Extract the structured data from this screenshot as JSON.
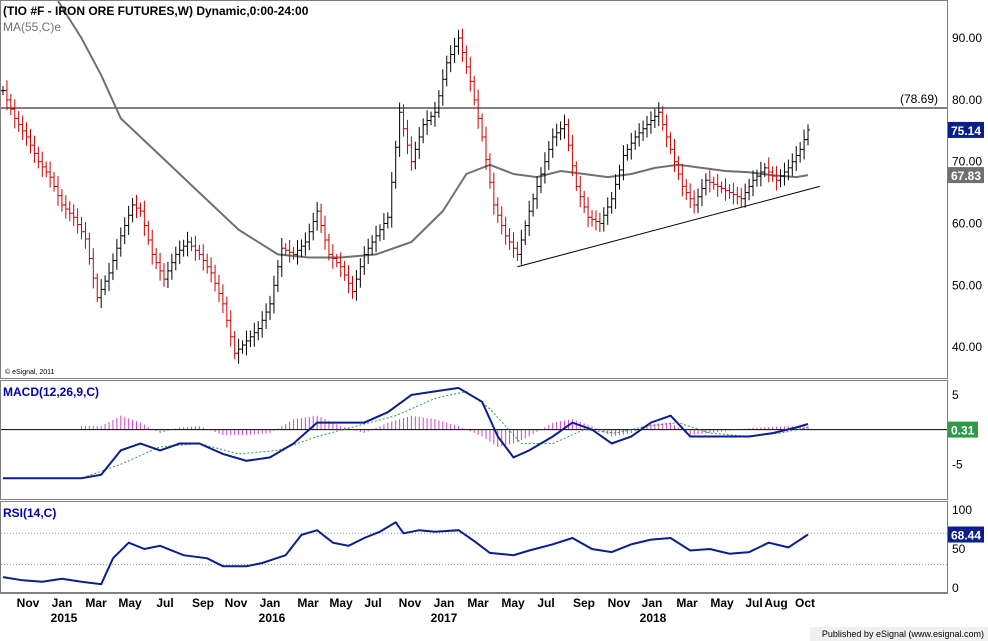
{
  "header": {
    "title": "(TIO #F - IRON ORE FUTURES,W) Dynamic,0:00-24:00",
    "ma_label": "MA(55,C)e",
    "copyright": "© eSignal, 2011"
  },
  "footer": {
    "published": "Published by eSignal (www.esignal.com)"
  },
  "colors": {
    "background": "#ffffff",
    "up_bar": "#000000",
    "down_bar": "#cc0000",
    "ma_line": "#707070",
    "macd_line": "#0a1e8c",
    "signal_line": "#2e9a4a",
    "histogram": "#cc44cc",
    "rsi_line": "#0a1e8c",
    "label_accent": "#0000aa"
  },
  "chart_data": [
    {
      "type": "line",
      "title": "(TIO #F - IRON ORE FUTURES,W) Dynamic,0:00-24:00",
      "panel": "price",
      "x_categories": [
        "Nov",
        "Jan",
        "Mar",
        "May",
        "Jul",
        "Sep",
        "Nov",
        "Jan",
        "Mar",
        "May",
        "Jul",
        "Nov",
        "Jan",
        "Mar",
        "May",
        "Jul",
        "Sep",
        "Nov",
        "Jan",
        "Mar",
        "May",
        "Jul",
        "Aug",
        "Oct"
      ],
      "x_year_labels": [
        "2015",
        "2016",
        "2017",
        "2018"
      ],
      "y_ticks": [
        "90.00",
        "80.00",
        "70.00",
        "60.00",
        "50.00",
        "40.00"
      ],
      "ylim": [
        35,
        96
      ],
      "price_series": [
        {
          "x": 0,
          "y": 81.5
        },
        {
          "x": 3,
          "y": 77
        },
        {
          "x": 6,
          "y": 74
        },
        {
          "x": 9,
          "y": 70
        },
        {
          "x": 12,
          "y": 67.5
        },
        {
          "x": 15,
          "y": 63
        },
        {
          "x": 18,
          "y": 61
        },
        {
          "x": 21,
          "y": 57.5
        },
        {
          "x": 24,
          "y": 48
        },
        {
          "x": 27,
          "y": 52
        },
        {
          "x": 30,
          "y": 58
        },
        {
          "x": 33,
          "y": 63
        },
        {
          "x": 35,
          "y": 62
        },
        {
          "x": 38,
          "y": 55
        },
        {
          "x": 41,
          "y": 51
        },
        {
          "x": 44,
          "y": 55
        },
        {
          "x": 47,
          "y": 57
        },
        {
          "x": 50,
          "y": 55
        },
        {
          "x": 53,
          "y": 52
        },
        {
          "x": 56,
          "y": 47
        },
        {
          "x": 59,
          "y": 39
        },
        {
          "x": 62,
          "y": 41
        },
        {
          "x": 65,
          "y": 43
        },
        {
          "x": 68,
          "y": 47
        },
        {
          "x": 71,
          "y": 56
        },
        {
          "x": 74,
          "y": 55
        },
        {
          "x": 77,
          "y": 57
        },
        {
          "x": 80,
          "y": 62
        },
        {
          "x": 83,
          "y": 55
        },
        {
          "x": 86,
          "y": 53
        },
        {
          "x": 89,
          "y": 49
        },
        {
          "x": 92,
          "y": 55
        },
        {
          "x": 95,
          "y": 58
        },
        {
          "x": 98,
          "y": 61
        },
        {
          "x": 101,
          "y": 78
        },
        {
          "x": 104,
          "y": 70
        },
        {
          "x": 107,
          "y": 76
        },
        {
          "x": 110,
          "y": 78
        },
        {
          "x": 113,
          "y": 86
        },
        {
          "x": 116,
          "y": 90
        },
        {
          "x": 119,
          "y": 83
        },
        {
          "x": 122,
          "y": 74
        },
        {
          "x": 125,
          "y": 63
        },
        {
          "x": 128,
          "y": 58
        },
        {
          "x": 131,
          "y": 55
        },
        {
          "x": 134,
          "y": 62
        },
        {
          "x": 137,
          "y": 68
        },
        {
          "x": 140,
          "y": 74
        },
        {
          "x": 143,
          "y": 76
        },
        {
          "x": 146,
          "y": 66
        },
        {
          "x": 149,
          "y": 61
        },
        {
          "x": 152,
          "y": 60
        },
        {
          "x": 155,
          "y": 64
        },
        {
          "x": 158,
          "y": 71
        },
        {
          "x": 161,
          "y": 74
        },
        {
          "x": 164,
          "y": 76
        },
        {
          "x": 167,
          "y": 78
        },
        {
          "x": 170,
          "y": 72
        },
        {
          "x": 173,
          "y": 66
        },
        {
          "x": 176,
          "y": 63
        },
        {
          "x": 179,
          "y": 67
        },
        {
          "x": 182,
          "y": 66
        },
        {
          "x": 185,
          "y": 65
        },
        {
          "x": 188,
          "y": 64
        },
        {
          "x": 191,
          "y": 67
        },
        {
          "x": 194,
          "y": 69
        },
        {
          "x": 197,
          "y": 67
        },
        {
          "x": 200,
          "y": 69
        },
        {
          "x": 203,
          "y": 72
        },
        {
          "x": 205,
          "y": 75.14
        }
      ],
      "ma_series": [
        {
          "x": 14,
          "y": 96
        },
        {
          "x": 20,
          "y": 90
        },
        {
          "x": 25,
          "y": 84
        },
        {
          "x": 30,
          "y": 77
        },
        {
          "x": 40,
          "y": 71
        },
        {
          "x": 50,
          "y": 65
        },
        {
          "x": 60,
          "y": 59
        },
        {
          "x": 70,
          "y": 55
        },
        {
          "x": 78,
          "y": 54.5
        },
        {
          "x": 86,
          "y": 54.5
        },
        {
          "x": 95,
          "y": 55
        },
        {
          "x": 104,
          "y": 57
        },
        {
          "x": 112,
          "y": 62
        },
        {
          "x": 118,
          "y": 68
        },
        {
          "x": 124,
          "y": 69.5
        },
        {
          "x": 130,
          "y": 68
        },
        {
          "x": 136,
          "y": 67.5
        },
        {
          "x": 142,
          "y": 68.5
        },
        {
          "x": 148,
          "y": 68
        },
        {
          "x": 154,
          "y": 67.5
        },
        {
          "x": 160,
          "y": 68
        },
        {
          "x": 166,
          "y": 69
        },
        {
          "x": 172,
          "y": 69.5
        },
        {
          "x": 178,
          "y": 69
        },
        {
          "x": 184,
          "y": 68.5
        },
        {
          "x": 190,
          "y": 68.3
        },
        {
          "x": 196,
          "y": 67.8
        },
        {
          "x": 202,
          "y": 67.5
        },
        {
          "x": 205,
          "y": 67.83
        }
      ],
      "horizontal_line": {
        "value": 78.69,
        "label": "(78.69)"
      },
      "trendline": [
        {
          "x": 131,
          "y": 53
        },
        {
          "x": 208,
          "y": 66
        }
      ],
      "last_value_labels": [
        "75.14",
        "67.83"
      ]
    },
    {
      "type": "line",
      "title": "MACD(12,26,9,C)",
      "panel": "macd",
      "y_ticks": [
        "5",
        "-5"
      ],
      "ylim": [
        -10,
        7
      ],
      "zero_line": 0,
      "last_value_label": "0.31",
      "macd_series": [
        {
          "x": 0,
          "y": -7
        },
        {
          "x": 10,
          "y": -7
        },
        {
          "x": 20,
          "y": -7
        },
        {
          "x": 25,
          "y": -6.5
        },
        {
          "x": 30,
          "y": -3
        },
        {
          "x": 35,
          "y": -2
        },
        {
          "x": 40,
          "y": -3
        },
        {
          "x": 45,
          "y": -2
        },
        {
          "x": 50,
          "y": -2
        },
        {
          "x": 56,
          "y": -3.5
        },
        {
          "x": 62,
          "y": -4.5
        },
        {
          "x": 68,
          "y": -4
        },
        {
          "x": 74,
          "y": -2
        },
        {
          "x": 80,
          "y": 1
        },
        {
          "x": 86,
          "y": 1
        },
        {
          "x": 92,
          "y": 1
        },
        {
          "x": 98,
          "y": 2.5
        },
        {
          "x": 104,
          "y": 5
        },
        {
          "x": 110,
          "y": 5.5
        },
        {
          "x": 116,
          "y": 6
        },
        {
          "x": 122,
          "y": 4
        },
        {
          "x": 126,
          "y": -1
        },
        {
          "x": 130,
          "y": -4
        },
        {
          "x": 134,
          "y": -3
        },
        {
          "x": 140,
          "y": -1
        },
        {
          "x": 145,
          "y": 1
        },
        {
          "x": 150,
          "y": 0
        },
        {
          "x": 155,
          "y": -2
        },
        {
          "x": 160,
          "y": -1
        },
        {
          "x": 165,
          "y": 1
        },
        {
          "x": 170,
          "y": 2
        },
        {
          "x": 175,
          "y": -1
        },
        {
          "x": 180,
          "y": -1
        },
        {
          "x": 190,
          "y": -1
        },
        {
          "x": 196,
          "y": -0.5
        },
        {
          "x": 202,
          "y": 0.3
        },
        {
          "x": 205,
          "y": 0.8
        }
      ],
      "signal_series": [
        {
          "x": 0,
          "y": -7
        },
        {
          "x": 20,
          "y": -7
        },
        {
          "x": 30,
          "y": -5
        },
        {
          "x": 40,
          "y": -2.5
        },
        {
          "x": 50,
          "y": -2
        },
        {
          "x": 60,
          "y": -3.5
        },
        {
          "x": 70,
          "y": -3
        },
        {
          "x": 80,
          "y": -1
        },
        {
          "x": 90,
          "y": 0.5
        },
        {
          "x": 100,
          "y": 2
        },
        {
          "x": 110,
          "y": 4.5
        },
        {
          "x": 118,
          "y": 5.5
        },
        {
          "x": 124,
          "y": 3
        },
        {
          "x": 132,
          "y": -2
        },
        {
          "x": 140,
          "y": -2
        },
        {
          "x": 148,
          "y": 0
        },
        {
          "x": 156,
          "y": -0.5
        },
        {
          "x": 164,
          "y": 0.5
        },
        {
          "x": 172,
          "y": 1
        },
        {
          "x": 180,
          "y": -0.5
        },
        {
          "x": 190,
          "y": -1
        },
        {
          "x": 198,
          "y": -0.5
        },
        {
          "x": 205,
          "y": 0.31
        }
      ],
      "histogram": [
        {
          "x": 25,
          "y": 0.5
        },
        {
          "x": 30,
          "y": 2
        },
        {
          "x": 35,
          "y": 1
        },
        {
          "x": 40,
          "y": -0.5
        },
        {
          "x": 45,
          "y": 0.3
        },
        {
          "x": 50,
          "y": 0.5
        },
        {
          "x": 56,
          "y": -0.8
        },
        {
          "x": 62,
          "y": -0.8
        },
        {
          "x": 68,
          "y": -0.5
        },
        {
          "x": 74,
          "y": 1.5
        },
        {
          "x": 80,
          "y": 2
        },
        {
          "x": 86,
          "y": 0.5
        },
        {
          "x": 92,
          "y": -0.5
        },
        {
          "x": 98,
          "y": 1
        },
        {
          "x": 104,
          "y": 2
        },
        {
          "x": 110,
          "y": 1.5
        },
        {
          "x": 116,
          "y": 0.5
        },
        {
          "x": 122,
          "y": -1
        },
        {
          "x": 126,
          "y": -2.5
        },
        {
          "x": 130,
          "y": -2
        },
        {
          "x": 134,
          "y": -1
        },
        {
          "x": 140,
          "y": 1
        },
        {
          "x": 145,
          "y": 1.5
        },
        {
          "x": 150,
          "y": 0.5
        },
        {
          "x": 155,
          "y": -1
        },
        {
          "x": 160,
          "y": -0.5
        },
        {
          "x": 165,
          "y": 0.8
        },
        {
          "x": 170,
          "y": 1
        },
        {
          "x": 175,
          "y": -0.8
        },
        {
          "x": 180,
          "y": -0.5
        },
        {
          "x": 190,
          "y": 0.2
        },
        {
          "x": 196,
          "y": 0.4
        },
        {
          "x": 202,
          "y": 0.5
        }
      ]
    },
    {
      "type": "line",
      "title": "RSI(14,C)",
      "panel": "rsi",
      "y_ticks": [
        "100",
        "50",
        "0"
      ],
      "ylim": [
        -5,
        110
      ],
      "reference_lines": [
        70,
        30
      ],
      "last_value_label": "68.44",
      "rsi_series": [
        {
          "x": 0,
          "y": 14
        },
        {
          "x": 5,
          "y": 10
        },
        {
          "x": 10,
          "y": 8
        },
        {
          "x": 15,
          "y": 12
        },
        {
          "x": 20,
          "y": 8
        },
        {
          "x": 25,
          "y": 5
        },
        {
          "x": 28,
          "y": 38
        },
        {
          "x": 32,
          "y": 58
        },
        {
          "x": 36,
          "y": 50
        },
        {
          "x": 40,
          "y": 54
        },
        {
          "x": 46,
          "y": 42
        },
        {
          "x": 52,
          "y": 38
        },
        {
          "x": 56,
          "y": 28
        },
        {
          "x": 62,
          "y": 28
        },
        {
          "x": 66,
          "y": 32
        },
        {
          "x": 72,
          "y": 42
        },
        {
          "x": 76,
          "y": 68
        },
        {
          "x": 80,
          "y": 74
        },
        {
          "x": 84,
          "y": 58
        },
        {
          "x": 88,
          "y": 54
        },
        {
          "x": 92,
          "y": 64
        },
        {
          "x": 96,
          "y": 72
        },
        {
          "x": 100,
          "y": 84
        },
        {
          "x": 102,
          "y": 70
        },
        {
          "x": 106,
          "y": 74
        },
        {
          "x": 110,
          "y": 72
        },
        {
          "x": 116,
          "y": 74
        },
        {
          "x": 120,
          "y": 60
        },
        {
          "x": 124,
          "y": 45
        },
        {
          "x": 130,
          "y": 42
        },
        {
          "x": 134,
          "y": 48
        },
        {
          "x": 140,
          "y": 56
        },
        {
          "x": 145,
          "y": 64
        },
        {
          "x": 150,
          "y": 50
        },
        {
          "x": 155,
          "y": 46
        },
        {
          "x": 160,
          "y": 56
        },
        {
          "x": 165,
          "y": 62
        },
        {
          "x": 170,
          "y": 64
        },
        {
          "x": 175,
          "y": 48
        },
        {
          "x": 180,
          "y": 50
        },
        {
          "x": 185,
          "y": 44
        },
        {
          "x": 190,
          "y": 46
        },
        {
          "x": 195,
          "y": 58
        },
        {
          "x": 200,
          "y": 52
        },
        {
          "x": 205,
          "y": 68.44
        }
      ]
    }
  ]
}
